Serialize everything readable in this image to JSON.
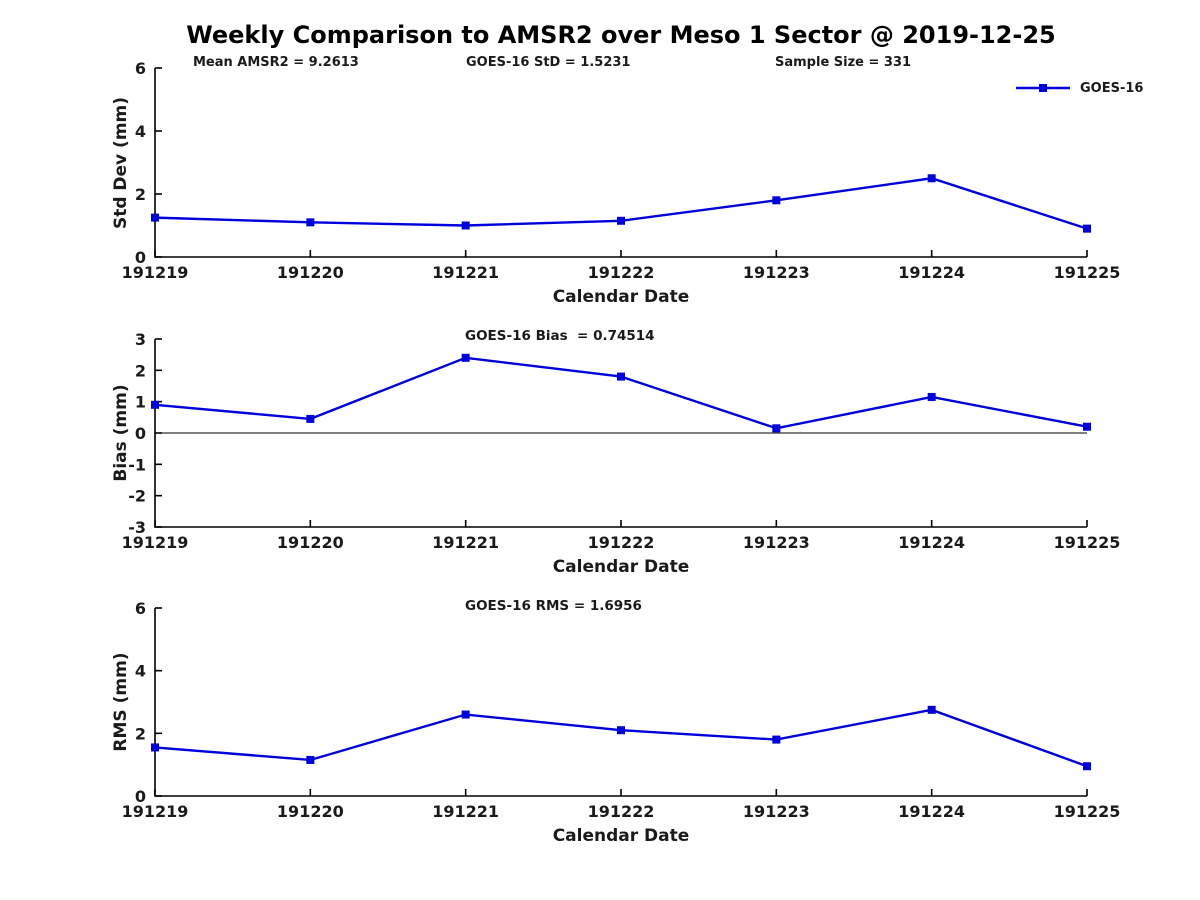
{
  "title": "Weekly Comparison to AMSR2 over Meso 1 Sector @ 2019-12-25",
  "annotations": {
    "mean_amsr2": "Mean AMSR2 = 9.2613",
    "goes16_std": "GOES-16 StD = 1.5231",
    "sample_size": "Sample Size = 331"
  },
  "legend": {
    "label": "GOES-16",
    "color": "#0000dd"
  },
  "chart_data": [
    {
      "id": "std-dev",
      "type": "line",
      "title": "",
      "xlabel": "Calendar Date",
      "ylabel": "Std Dev (mm)",
      "categories": [
        "191219",
        "191220",
        "191221",
        "191222",
        "191223",
        "191224",
        "191225"
      ],
      "series": [
        {
          "name": "GOES-16",
          "values": [
            1.25,
            1.1,
            1.0,
            1.15,
            1.8,
            2.5,
            0.9
          ]
        }
      ],
      "ylim": [
        0,
        6
      ],
      "yticks": [
        0,
        2,
        4,
        6
      ],
      "zero_line": false,
      "grid": false,
      "color": "#0000dd",
      "legend_position": "top-right"
    },
    {
      "id": "bias",
      "type": "line",
      "title": "GOES-16 Bias  = 0.74514",
      "xlabel": "Calendar Date",
      "ylabel": "Bias (mm)",
      "categories": [
        "191219",
        "191220",
        "191221",
        "191222",
        "191223",
        "191224",
        "191225"
      ],
      "series": [
        {
          "name": "GOES-16",
          "values": [
            0.9,
            0.45,
            2.4,
            1.8,
            0.15,
            1.15,
            0.2
          ]
        }
      ],
      "ylim": [
        -3,
        3
      ],
      "yticks": [
        -3,
        -2,
        -1,
        0,
        1,
        2,
        3
      ],
      "zero_line": true,
      "grid": false,
      "color": "#0000dd"
    },
    {
      "id": "rms",
      "type": "line",
      "title": "GOES-16 RMS = 1.6956",
      "xlabel": "Calendar Date",
      "ylabel": "RMS (mm)",
      "categories": [
        "191219",
        "191220",
        "191221",
        "191222",
        "191223",
        "191224",
        "191225"
      ],
      "series": [
        {
          "name": "GOES-16",
          "values": [
            1.55,
            1.15,
            2.6,
            2.1,
            1.8,
            2.75,
            0.95
          ]
        }
      ],
      "ylim": [
        0,
        6
      ],
      "yticks": [
        0,
        2,
        4,
        6
      ],
      "zero_line": false,
      "grid": false,
      "color": "#0000dd"
    }
  ]
}
